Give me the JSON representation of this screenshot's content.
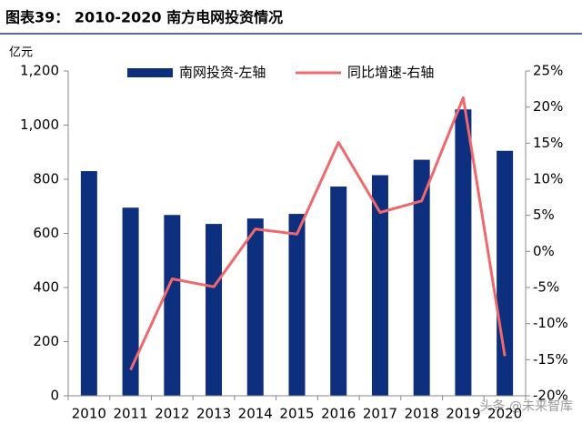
{
  "chart_data": {
    "type": "bar_line",
    "title": "图表39： 2010-2020 南方电网投资情况",
    "y_label": "亿元",
    "watermark": "头条 @未来智库",
    "categories": [
      "2010",
      "2011",
      "2012",
      "2013",
      "2014",
      "2015",
      "2016",
      "2017",
      "2018",
      "2019",
      "2020"
    ],
    "series": [
      {
        "name": "南网投资-左轴",
        "type": "bar",
        "color": "#0d2f7e",
        "values": [
          830,
          695,
          668,
          635,
          655,
          672,
          773,
          815,
          872,
          1058,
          905
        ]
      },
      {
        "name": "同比增速-右轴",
        "type": "line",
        "axis": "y2",
        "color": "#f0686c",
        "values": [
          null,
          -16.4,
          -3.8,
          -4.9,
          3.1,
          2.4,
          15.1,
          5.4,
          7.0,
          21.3,
          -14.5
        ]
      }
    ],
    "ylim": [
      0,
      1200
    ],
    "yticks": [
      0,
      200,
      400,
      600,
      800,
      {
        "value": 1000,
        "label": "1,000"
      },
      {
        "value": 1200,
        "label": "1,200"
      }
    ],
    "y2lim": [
      -20,
      25
    ],
    "y2ticks": [
      {
        "value": -20,
        "label": "-20%"
      },
      {
        "value": -15,
        "label": "-15%"
      },
      {
        "value": -10,
        "label": "-10%"
      },
      {
        "value": -5,
        "label": "-5%"
      },
      {
        "value": 0,
        "label": "0%"
      },
      {
        "value": 5,
        "label": "5%"
      },
      {
        "value": 10,
        "label": "10%"
      },
      {
        "value": 15,
        "label": "15%"
      },
      {
        "value": 20,
        "label": "20%"
      },
      {
        "value": 25,
        "label": "25%"
      }
    ],
    "legend": "top",
    "grid": false
  }
}
